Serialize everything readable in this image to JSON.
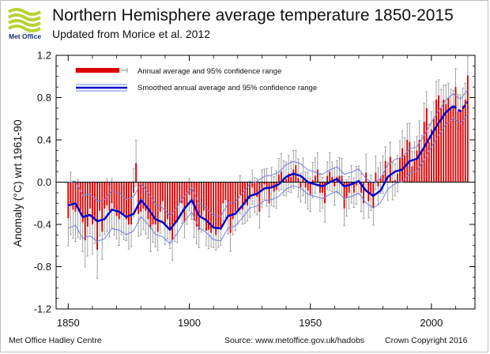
{
  "header": {
    "title": "Northern Hemisphere average temperature 1850-2015",
    "subtitle": "Updated from Morice et al. 2012",
    "logo_text": "Met Office",
    "logo_color": "#b5d334"
  },
  "footer": {
    "left": "Met Office Hadley Centre",
    "middle": "Source: www.metoffice.gov.uk/hadobs",
    "right": "Crown Copyright 2016"
  },
  "chart_data": {
    "type": "bar",
    "ylabel": "Anomaly (°C) wrt 1961-90",
    "xlim": [
      1845,
      2018
    ],
    "ylim": [
      -1.2,
      1.2
    ],
    "x_ticks": [
      1850,
      1900,
      1950,
      2000
    ],
    "y_ticks": [
      -1.2,
      -0.8,
      -0.4,
      0.0,
      0.4,
      0.8,
      1.2
    ],
    "y_tick_labels": [
      "-1.2",
      "-0.8",
      "-0.4",
      "0.0",
      "0.4",
      "0.8",
      "1.2"
    ],
    "legend_position": "top-left",
    "legend": [
      {
        "label": "Annual average and 95% confidence range",
        "color": "#dd0000"
      },
      {
        "label": "Smoothed annual average and 95% confidence range",
        "color": "#0000cc"
      }
    ],
    "colors": {
      "bars": "#dd0000",
      "smoothed": "#0000cc",
      "smoothed_band": "#6f7fe0",
      "error_bars": "#8c8c8c"
    },
    "series": [
      {
        "name": "Annual average and 95% confidence range",
        "x": [
          1850,
          1851,
          1852,
          1853,
          1854,
          1855,
          1856,
          1857,
          1858,
          1859,
          1860,
          1861,
          1862,
          1863,
          1864,
          1865,
          1866,
          1867,
          1868,
          1869,
          1870,
          1871,
          1872,
          1873,
          1874,
          1875,
          1876,
          1877,
          1878,
          1879,
          1880,
          1881,
          1882,
          1883,
          1884,
          1885,
          1886,
          1887,
          1888,
          1889,
          1890,
          1891,
          1892,
          1893,
          1894,
          1895,
          1896,
          1897,
          1898,
          1899,
          1900,
          1901,
          1902,
          1903,
          1904,
          1905,
          1906,
          1907,
          1908,
          1909,
          1910,
          1911,
          1912,
          1913,
          1914,
          1915,
          1916,
          1917,
          1918,
          1919,
          1920,
          1921,
          1922,
          1923,
          1924,
          1925,
          1926,
          1927,
          1928,
          1929,
          1930,
          1931,
          1932,
          1933,
          1934,
          1935,
          1936,
          1937,
          1938,
          1939,
          1940,
          1941,
          1942,
          1943,
          1944,
          1945,
          1946,
          1947,
          1948,
          1949,
          1950,
          1951,
          1952,
          1953,
          1954,
          1955,
          1956,
          1957,
          1958,
          1959,
          1960,
          1961,
          1962,
          1963,
          1964,
          1965,
          1966,
          1967,
          1968,
          1969,
          1970,
          1971,
          1972,
          1973,
          1974,
          1975,
          1976,
          1977,
          1978,
          1979,
          1980,
          1981,
          1982,
          1983,
          1984,
          1985,
          1986,
          1987,
          1988,
          1989,
          1990,
          1991,
          1992,
          1993,
          1994,
          1995,
          1996,
          1997,
          1998,
          1999,
          2000,
          2001,
          2002,
          2003,
          2004,
          2005,
          2006,
          2007,
          2008,
          2009,
          2010,
          2011,
          2012,
          2013,
          2014,
          2015
        ],
        "values": [
          -0.34,
          -0.2,
          -0.26,
          -0.28,
          -0.25,
          -0.27,
          -0.38,
          -0.55,
          -0.42,
          -0.25,
          -0.4,
          -0.35,
          -0.64,
          -0.27,
          -0.47,
          -0.25,
          -0.22,
          -0.27,
          -0.2,
          -0.25,
          -0.32,
          -0.35,
          -0.3,
          -0.3,
          -0.35,
          -0.4,
          -0.4,
          -0.1,
          0.18,
          -0.3,
          -0.28,
          -0.25,
          -0.27,
          -0.35,
          -0.44,
          -0.4,
          -0.4,
          -0.47,
          -0.28,
          -0.18,
          -0.4,
          -0.35,
          -0.45,
          -0.55,
          -0.4,
          -0.38,
          -0.2,
          -0.2,
          -0.38,
          -0.22,
          -0.12,
          -0.18,
          -0.36,
          -0.42,
          -0.45,
          -0.32,
          -0.27,
          -0.46,
          -0.45,
          -0.48,
          -0.44,
          -0.5,
          -0.44,
          -0.44,
          -0.2,
          -0.17,
          -0.33,
          -0.48,
          -0.35,
          -0.28,
          -0.26,
          -0.12,
          -0.26,
          -0.21,
          -0.22,
          -0.16,
          -0.05,
          -0.12,
          -0.14,
          -0.28,
          -0.06,
          -0.02,
          -0.05,
          -0.2,
          -0.04,
          -0.09,
          -0.07,
          0.07,
          0.1,
          0.04,
          0.03,
          0.08,
          0.05,
          0.12,
          0.16,
          0.04,
          -0.05,
          0.05,
          -0.05,
          -0.08,
          -0.12,
          0.02,
          0.06,
          0.12,
          -0.1,
          -0.1,
          -0.2,
          0.06,
          0.1,
          0.05,
          -0.04,
          0.05,
          0.06,
          0.06,
          -0.25,
          -0.15,
          -0.1,
          -0.02,
          -0.1,
          -0.03,
          0.02,
          -0.1,
          -0.2,
          0.09,
          -0.18,
          -0.1,
          -0.24,
          0.09,
          -0.04,
          0.04,
          0.07,
          0.2,
          0.01,
          0.24,
          0.01,
          0.02,
          0.08,
          0.23,
          0.32,
          0.25,
          0.4,
          0.38,
          0.15,
          0.2,
          0.3,
          0.4,
          0.3,
          0.57,
          0.7,
          0.38,
          0.5,
          0.6,
          0.78,
          0.82,
          0.7,
          0.78,
          0.74,
          0.8,
          0.7,
          0.72,
          0.9,
          0.67,
          0.66,
          0.72,
          0.78,
          1.01
        ]
      },
      {
        "name": "Smoothed annual average and 95% confidence range",
        "x": [
          1850,
          1853,
          1856,
          1859,
          1862,
          1865,
          1868,
          1871,
          1874,
          1877,
          1880,
          1883,
          1886,
          1889,
          1892,
          1895,
          1898,
          1901,
          1904,
          1907,
          1910,
          1913,
          1916,
          1919,
          1922,
          1925,
          1928,
          1931,
          1934,
          1937,
          1940,
          1943,
          1946,
          1949,
          1952,
          1955,
          1958,
          1961,
          1964,
          1967,
          1970,
          1973,
          1976,
          1979,
          1982,
          1985,
          1988,
          1991,
          1994,
          1997,
          2000,
          2003,
          2006,
          2009,
          2012,
          2015
        ],
        "values": [
          -0.22,
          -0.2,
          -0.33,
          -0.31,
          -0.37,
          -0.35,
          -0.26,
          -0.28,
          -0.33,
          -0.3,
          -0.17,
          -0.25,
          -0.35,
          -0.38,
          -0.45,
          -0.36,
          -0.25,
          -0.17,
          -0.32,
          -0.36,
          -0.43,
          -0.44,
          -0.32,
          -0.3,
          -0.22,
          -0.13,
          -0.11,
          -0.06,
          -0.05,
          -0.02,
          0.05,
          0.08,
          0.06,
          0.0,
          -0.02,
          -0.04,
          0.0,
          0.03,
          -0.04,
          -0.02,
          0.01,
          -0.08,
          -0.13,
          -0.08,
          0.05,
          0.1,
          0.12,
          0.2,
          0.22,
          0.33,
          0.45,
          0.56,
          0.66,
          0.72,
          0.67,
          0.76
        ]
      }
    ]
  }
}
